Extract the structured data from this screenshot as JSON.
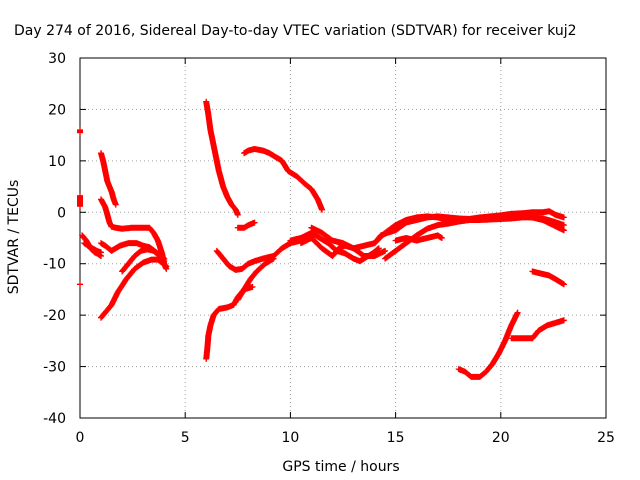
{
  "chart_data": {
    "type": "scatter",
    "title": "Day 274 of 2016, Sidereal Day-to-day VTEC variation (SDTVAR) for receiver kuj2",
    "xlabel": "GPS time / hours",
    "ylabel": "SDTVAR / TECUs",
    "xlim": [
      0,
      25
    ],
    "ylim": [
      -40,
      30
    ],
    "xticks": [
      0,
      5,
      10,
      15,
      20,
      25
    ],
    "yticks": [
      -40,
      -30,
      -20,
      -10,
      0,
      10,
      20,
      30
    ],
    "xtick_labels": [
      "0",
      "5",
      "10",
      "15",
      "20",
      "25"
    ],
    "ytick_labels": [
      "-40",
      "-30",
      "-20",
      "-10",
      "0",
      "10",
      "20",
      "30"
    ],
    "grid": true,
    "marker": "+",
    "color": "#ff0000",
    "series": [
      {
        "name": "s1",
        "points": [
          [
            0.0,
            16
          ],
          [
            0.0,
            15.5
          ]
        ]
      },
      {
        "name": "s2",
        "points": [
          [
            0.0,
            3.2
          ],
          [
            0.0,
            1.2
          ]
        ]
      },
      {
        "name": "s3",
        "points": [
          [
            0.0,
            -14
          ]
        ]
      },
      {
        "name": "s4",
        "points": [
          [
            0.1,
            -4.5
          ],
          [
            0.3,
            -5.5
          ],
          [
            0.5,
            -7
          ],
          [
            0.7,
            -7.8
          ],
          [
            0.9,
            -8.2
          ],
          [
            1.0,
            -8.5
          ]
        ]
      },
      {
        "name": "s5",
        "points": [
          [
            0.2,
            -6
          ],
          [
            0.5,
            -6.8
          ],
          [
            0.8,
            -7.5
          ],
          [
            1.0,
            -7.8
          ]
        ]
      },
      {
        "name": "s6",
        "points": [
          [
            1.0,
            11.5
          ],
          [
            1.1,
            10
          ],
          [
            1.2,
            8
          ],
          [
            1.3,
            6
          ],
          [
            1.5,
            4
          ],
          [
            1.6,
            2.5
          ],
          [
            1.7,
            1.5
          ]
        ]
      },
      {
        "name": "s7",
        "points": [
          [
            1.0,
            2.5
          ],
          [
            1.2,
            1
          ],
          [
            1.3,
            -0.5
          ],
          [
            1.4,
            -2
          ],
          [
            1.5,
            -2.8
          ],
          [
            1.7,
            -3
          ],
          [
            2.0,
            -3.2
          ],
          [
            2.5,
            -3
          ],
          [
            3.0,
            -3
          ],
          [
            3.3,
            -3
          ],
          [
            3.5,
            -4
          ],
          [
            3.7,
            -5.5
          ],
          [
            3.9,
            -8
          ],
          [
            4.0,
            -10
          ],
          [
            4.1,
            -11
          ]
        ]
      },
      {
        "name": "s8",
        "points": [
          [
            1.0,
            -20.5
          ],
          [
            1.2,
            -19.5
          ],
          [
            1.5,
            -18
          ],
          [
            1.8,
            -15.5
          ],
          [
            2.2,
            -13
          ],
          [
            2.6,
            -11
          ],
          [
            3.0,
            -9.8
          ],
          [
            3.4,
            -9.2
          ],
          [
            3.7,
            -9.2
          ],
          [
            3.9,
            -9.8
          ],
          [
            4.1,
            -10.5
          ]
        ]
      },
      {
        "name": "s9",
        "points": [
          [
            1.0,
            -6
          ],
          [
            1.2,
            -6.5
          ],
          [
            1.5,
            -7.5
          ],
          [
            1.7,
            -7
          ],
          [
            1.9,
            -6.5
          ],
          [
            2.3,
            -6
          ],
          [
            2.7,
            -6
          ],
          [
            3.0,
            -6.5
          ],
          [
            3.3,
            -6.8
          ],
          [
            3.7,
            -8
          ],
          [
            4.0,
            -9
          ]
        ]
      },
      {
        "name": "s10",
        "points": [
          [
            2.0,
            -11.5
          ],
          [
            2.3,
            -10
          ],
          [
            2.6,
            -8.5
          ],
          [
            2.9,
            -7.5
          ],
          [
            3.2,
            -7.2
          ],
          [
            3.5,
            -7.5
          ],
          [
            3.8,
            -8.5
          ],
          [
            4.0,
            -9.5
          ]
        ]
      },
      {
        "name": "s11",
        "points": [
          [
            6.0,
            21.5
          ],
          [
            6.1,
            19
          ],
          [
            6.2,
            16
          ],
          [
            6.4,
            12
          ],
          [
            6.6,
            8
          ],
          [
            6.8,
            5
          ],
          [
            7.0,
            3
          ],
          [
            7.2,
            1.5
          ],
          [
            7.4,
            0.5
          ],
          [
            7.5,
            -0.5
          ]
        ]
      },
      {
        "name": "s12",
        "points": [
          [
            6.0,
            -28.5
          ],
          [
            6.05,
            -26.5
          ],
          [
            6.1,
            -24
          ],
          [
            6.2,
            -22
          ],
          [
            6.35,
            -20
          ],
          [
            6.6,
            -18.8
          ],
          [
            7.0,
            -18.5
          ],
          [
            7.3,
            -18
          ],
          [
            7.5,
            -16.5
          ],
          [
            7.8,
            -15
          ],
          [
            8.2,
            -14.5
          ]
        ]
      },
      {
        "name": "s13",
        "points": [
          [
            6.5,
            -7.5
          ],
          [
            6.8,
            -9
          ],
          [
            7.1,
            -10.5
          ],
          [
            7.4,
            -11.2
          ],
          [
            7.7,
            -11
          ],
          [
            8.0,
            -10
          ],
          [
            8.3,
            -9.5
          ],
          [
            8.7,
            -9
          ],
          [
            9.2,
            -8.5
          ],
          [
            9.6,
            -7
          ],
          [
            10.0,
            -6
          ],
          [
            10.5,
            -5.5
          ],
          [
            11.0,
            -4.5
          ]
        ]
      },
      {
        "name": "s14",
        "points": [
          [
            7.5,
            -3
          ],
          [
            7.8,
            -3
          ],
          [
            8.0,
            -2.5
          ],
          [
            8.3,
            -2
          ]
        ]
      },
      {
        "name": "s15",
        "points": [
          [
            7.5,
            -17
          ],
          [
            7.8,
            -15
          ],
          [
            8.1,
            -13
          ],
          [
            8.4,
            -11.5
          ],
          [
            8.8,
            -10
          ],
          [
            9.2,
            -9
          ]
        ]
      },
      {
        "name": "s16",
        "points": [
          [
            7.8,
            11.5
          ],
          [
            8.0,
            12
          ],
          [
            8.3,
            12.3
          ],
          [
            8.7,
            12
          ],
          [
            9.0,
            11.5
          ],
          [
            9.4,
            10.5
          ],
          [
            9.6,
            10
          ],
          [
            9.9,
            8
          ],
          [
            10.3,
            7
          ],
          [
            10.7,
            5.5
          ],
          [
            11.0,
            4.5
          ],
          [
            11.3,
            2.5
          ],
          [
            11.5,
            0.5
          ]
        ]
      },
      {
        "name": "s17",
        "points": [
          [
            10.0,
            -5.5
          ],
          [
            10.5,
            -5
          ],
          [
            11.0,
            -4
          ],
          [
            11.4,
            -5
          ],
          [
            11.8,
            -6
          ],
          [
            12.2,
            -7.5
          ],
          [
            12.6,
            -8
          ],
          [
            13.0,
            -9
          ],
          [
            13.3,
            -9.5
          ],
          [
            13.5,
            -9
          ],
          [
            13.9,
            -8
          ],
          [
            14.2,
            -7
          ]
        ]
      },
      {
        "name": "s18",
        "points": [
          [
            10.5,
            -6
          ],
          [
            11.0,
            -5
          ],
          [
            11.5,
            -7
          ],
          [
            12.0,
            -8.5
          ],
          [
            12.3,
            -7
          ],
          [
            12.6,
            -6.5
          ],
          [
            13.0,
            -7
          ],
          [
            13.5,
            -8.5
          ],
          [
            14.0,
            -8.5
          ],
          [
            14.5,
            -7.5
          ]
        ]
      },
      {
        "name": "s19",
        "points": [
          [
            11.0,
            -3
          ],
          [
            11.5,
            -4
          ],
          [
            12.0,
            -5.5
          ],
          [
            12.5,
            -6
          ],
          [
            13.0,
            -7
          ],
          [
            13.5,
            -6.5
          ],
          [
            14.0,
            -6
          ],
          [
            14.3,
            -4.5
          ],
          [
            14.6,
            -4
          ],
          [
            15.0,
            -3.5
          ],
          [
            15.5,
            -2
          ],
          [
            16.0,
            -1.5
          ],
          [
            16.5,
            -1
          ],
          [
            17.0,
            -0.8
          ],
          [
            17.5,
            -1
          ],
          [
            18.0,
            -1.2
          ],
          [
            18.5,
            -1.3
          ],
          [
            19.0,
            -1
          ],
          [
            19.5,
            -0.8
          ],
          [
            20.0,
            -0.6
          ],
          [
            20.5,
            -0.3
          ],
          [
            21.0,
            -0.2
          ],
          [
            21.5,
            0
          ],
          [
            22.0,
            0
          ],
          [
            22.3,
            0.2
          ],
          [
            22.6,
            -0.5
          ],
          [
            23.0,
            -1
          ]
        ]
      },
      {
        "name": "s20",
        "points": [
          [
            14.0,
            -6
          ],
          [
            14.5,
            -4
          ],
          [
            15.0,
            -2.5
          ],
          [
            15.5,
            -1.5
          ],
          [
            16.0,
            -1
          ],
          [
            16.5,
            -0.8
          ],
          [
            17.0,
            -1
          ],
          [
            17.5,
            -1.5
          ],
          [
            18.0,
            -1.6
          ],
          [
            18.5,
            -1.5
          ],
          [
            19.0,
            -1.5
          ],
          [
            19.5,
            -1.4
          ],
          [
            20.0,
            -1.3
          ],
          [
            20.5,
            -1.2
          ],
          [
            21.0,
            -1
          ],
          [
            21.5,
            -1
          ],
          [
            22.0,
            -1.2
          ],
          [
            22.5,
            -1.8
          ],
          [
            23.0,
            -2.5
          ]
        ]
      },
      {
        "name": "s21",
        "points": [
          [
            14.5,
            -9
          ],
          [
            15.0,
            -7.5
          ],
          [
            15.5,
            -6
          ],
          [
            16.0,
            -4.5
          ],
          [
            16.5,
            -3.2
          ],
          [
            17.0,
            -2.5
          ],
          [
            17.5,
            -2.2
          ],
          [
            18.0,
            -1.8
          ],
          [
            18.5,
            -1.5
          ],
          [
            19.0,
            -1.2
          ],
          [
            19.5,
            -1
          ],
          [
            20.0,
            -0.8
          ],
          [
            20.5,
            -0.8
          ],
          [
            21.0,
            -0.8
          ],
          [
            21.5,
            -1
          ],
          [
            22.0,
            -1.5
          ],
          [
            22.5,
            -2.5
          ],
          [
            23.0,
            -3.5
          ]
        ]
      },
      {
        "name": "s22",
        "points": [
          [
            15.0,
            -5.5
          ],
          [
            15.5,
            -5
          ],
          [
            16.0,
            -5.5
          ],
          [
            16.5,
            -5
          ],
          [
            17.0,
            -4.5
          ],
          [
            17.2,
            -5
          ]
        ]
      },
      {
        "name": "s23",
        "points": [
          [
            18.0,
            -30.5
          ],
          [
            18.3,
            -31
          ],
          [
            18.6,
            -32
          ],
          [
            19.0,
            -32
          ],
          [
            19.3,
            -31
          ],
          [
            19.6,
            -29.5
          ],
          [
            19.9,
            -27.5
          ],
          [
            20.2,
            -25
          ],
          [
            20.5,
            -22
          ],
          [
            20.8,
            -19.5
          ]
        ]
      },
      {
        "name": "s24",
        "points": [
          [
            20.5,
            -24.5
          ],
          [
            21.0,
            -24.5
          ],
          [
            21.5,
            -24.5
          ],
          [
            21.8,
            -23
          ],
          [
            22.2,
            -22
          ],
          [
            22.6,
            -21.5
          ],
          [
            23.0,
            -21
          ]
        ]
      },
      {
        "name": "s25",
        "points": [
          [
            21.5,
            -11.5
          ],
          [
            22.0,
            -12
          ],
          [
            22.3,
            -12.3
          ],
          [
            22.6,
            -13
          ],
          [
            23.0,
            -14
          ]
        ]
      }
    ]
  }
}
